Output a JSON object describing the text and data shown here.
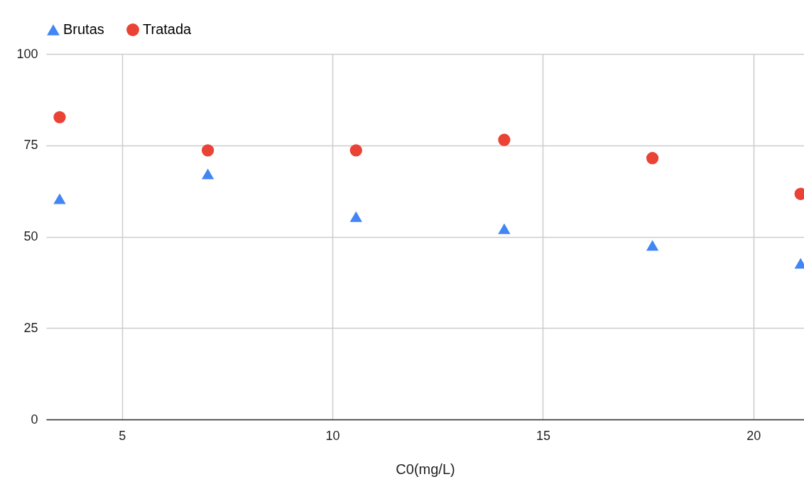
{
  "chart_data": {
    "type": "scatter",
    "xlabel": "C0(mg/L)",
    "x": [
      3.52,
      7.04,
      10.56,
      14.08,
      17.6,
      21.12
    ],
    "series": [
      {
        "name": "Brutas",
        "color": "#4285f4",
        "marker": "triangle",
        "values": [
          60.4,
          67.2,
          55.5,
          52.2,
          47.6,
          42.7
        ]
      },
      {
        "name": "Tratada",
        "color": "#ea4335",
        "marker": "circle",
        "values": [
          82.7,
          73.6,
          73.6,
          76.5,
          71.5,
          61.7
        ]
      }
    ],
    "xlim": [
      3.2,
      21.2
    ],
    "xticks": [
      5,
      10,
      15,
      20
    ],
    "ylim": [
      0,
      100
    ],
    "yticks": [
      0,
      25,
      50,
      75,
      100
    ],
    "grid": true,
    "legend": "top"
  }
}
